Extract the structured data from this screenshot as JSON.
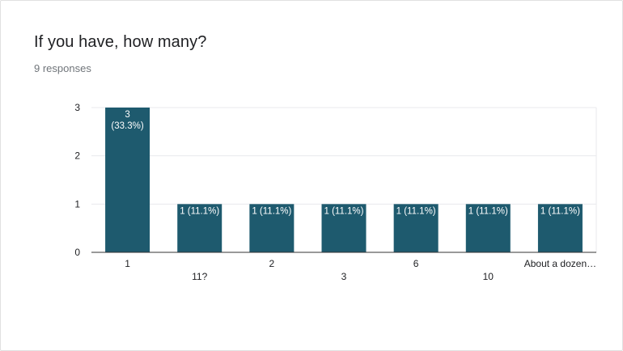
{
  "header": {
    "question": "If you have, how many?",
    "responses": "9 responses"
  },
  "colors": {
    "bar": "#1e5a6e",
    "bar_label": "#ffffff",
    "grid": "#e8eaed",
    "axis": "#333333",
    "tick_text": "#202124"
  },
  "chart_data": {
    "type": "bar",
    "title": "",
    "xlabel": "",
    "ylabel": "",
    "categories": [
      "1",
      "11?",
      "2",
      "3",
      "6",
      "10",
      "About a dozen…"
    ],
    "values": [
      3,
      1,
      1,
      1,
      1,
      1,
      1
    ],
    "data_labels": [
      "3\n(33.3%)",
      "1 (11.1%)",
      "1 (11.1%)",
      "1 (11.1%)",
      "1 (11.1%)",
      "1 (11.1%)",
      "1 (11.1%)"
    ],
    "ylim": [
      0,
      3
    ],
    "yticks": [
      0,
      1,
      2,
      3
    ],
    "grid": true,
    "legend": "none"
  }
}
